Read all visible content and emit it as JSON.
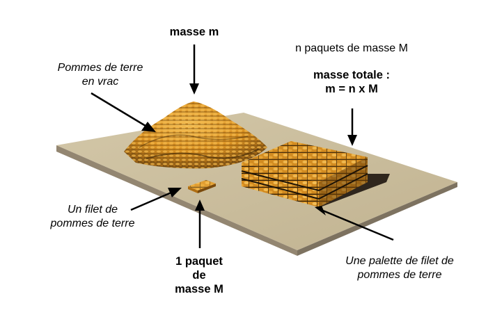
{
  "labels": {
    "masse_m": "masse m",
    "n_paquets": "n paquets de masse M",
    "masse_totale_title": "masse totale :",
    "masse_totale_formula": "m = n x M",
    "vrac_line1": "Pommes de terre",
    "vrac_line2": "en vrac",
    "filet_line1": "Un filet de",
    "filet_line2": "pommes de terre",
    "paquet_line1": "1 paquet",
    "paquet_line2": "de",
    "paquet_line3": "masse M",
    "palette_line1": "Une palette de filet de",
    "palette_line2": "pommes de terre"
  },
  "colors": {
    "board_top": "#cdc0a0",
    "board_front": "#8f8470",
    "board_side": "#a89c80",
    "potato_light": "#f3b84a",
    "potato_mid": "#d98f1e",
    "potato_dark": "#5a3a10",
    "crate_dark": "#1e1408",
    "arrow": "#000000"
  }
}
